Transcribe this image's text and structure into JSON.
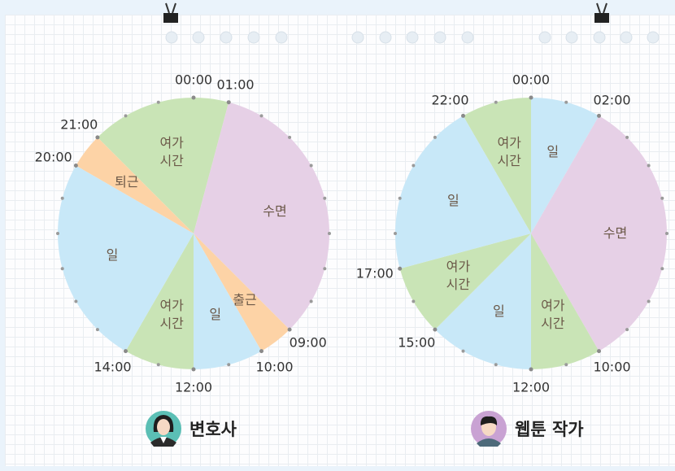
{
  "chart_data": [
    {
      "type": "pie",
      "title": "변호사",
      "start": 21,
      "categories": [
        "여가\n시간",
        "수면",
        "출근",
        "일",
        "여가\n시간",
        "일",
        "퇴근"
      ],
      "values": [
        4,
        8,
        1,
        2,
        2,
        6,
        1
      ],
      "colors": [
        "#c9e4b6",
        "#e6d0e6",
        "#fdd3a6",
        "#c8e8f8",
        "#c9e4b6",
        "#c8e8f8",
        "#fdd3a6"
      ],
      "ticks": [
        {
          "value": 0,
          "label": "00:00"
        },
        {
          "value": 1,
          "label": "01:00"
        },
        {
          "value": 9,
          "label": "09:00"
        },
        {
          "value": 10,
          "label": "10:00"
        },
        {
          "value": 12,
          "label": "12:00"
        },
        {
          "value": 14,
          "label": "14:00"
        },
        {
          "value": 20,
          "label": "20:00"
        },
        {
          "value": 21,
          "label": "21:00"
        }
      ]
    },
    {
      "type": "pie",
      "title": "웹툰 작가",
      "start": 22,
      "categories": [
        "여가\n시간",
        "일",
        "수면",
        "여가\n시간",
        "일",
        "여가\n시간",
        "일"
      ],
      "values": [
        2,
        2,
        8,
        2,
        3,
        2,
        5
      ],
      "colors": [
        "#c9e4b6",
        "#c8e8f8",
        "#e6d0e6",
        "#c9e4b6",
        "#c8e8f8",
        "#c9e4b6",
        "#c8e8f8"
      ],
      "ticks": [
        {
          "value": 0,
          "label": "00:00"
        },
        {
          "value": 2,
          "label": "02:00"
        },
        {
          "value": 10,
          "label": "10:00"
        },
        {
          "value": 12,
          "label": "12:00"
        },
        {
          "value": 15,
          "label": "15:00"
        },
        {
          "value": 17,
          "label": "17:00"
        },
        {
          "value": 22,
          "label": "22:00"
        }
      ]
    }
  ]
}
